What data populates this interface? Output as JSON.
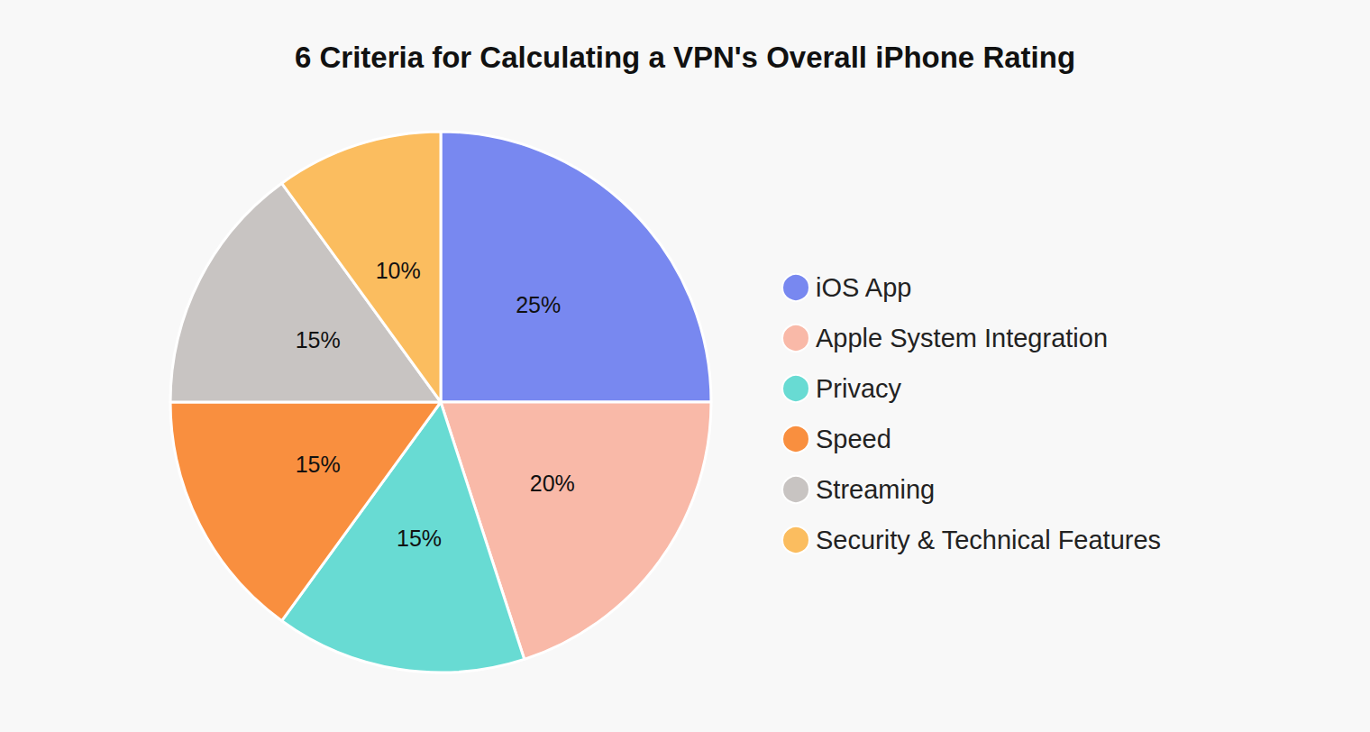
{
  "chart_data": {
    "type": "pie",
    "title": "6 Criteria for Calculating a VPN's Overall iPhone Rating",
    "categories": [
      "iOS App",
      "Apple System Integration",
      "Privacy",
      "Speed",
      "Streaming",
      "Security & Technical Features"
    ],
    "values": [
      25,
      20,
      15,
      15,
      15,
      10
    ],
    "value_labels": [
      "25%",
      "20%",
      "15%",
      "15%",
      "15%",
      "10%"
    ],
    "colors": [
      "#7888f0",
      "#f9b9a8",
      "#68dbd3",
      "#f98f3f",
      "#c8c4c2",
      "#fbbd5f"
    ],
    "data_labels": true,
    "legend": "right"
  }
}
